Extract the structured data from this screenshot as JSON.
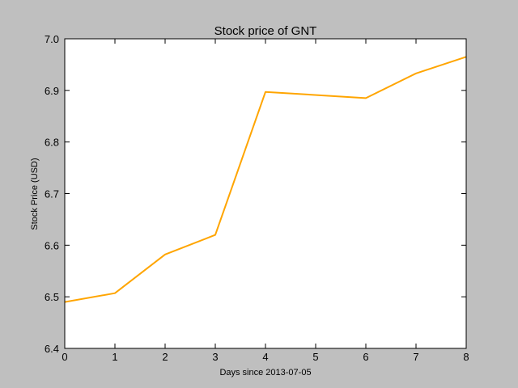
{
  "chart_data": {
    "type": "line",
    "title": "Stock price of GNT",
    "xlabel": "Days since 2013-07-05",
    "ylabel": "Stock Price (USD)",
    "x": [
      0,
      1,
      2,
      3,
      4,
      6,
      7,
      8
    ],
    "series": [
      {
        "values": [
          6.49,
          6.507,
          6.582,
          6.62,
          6.897,
          6.885,
          6.933,
          6.965
        ],
        "color": "#ffa500"
      }
    ],
    "xlim": [
      0,
      8
    ],
    "ylim": [
      6.4,
      7.0
    ],
    "xticks": [
      "0",
      "1",
      "2",
      "3",
      "4",
      "5",
      "6",
      "7",
      "8"
    ],
    "yticks": [
      "6.4",
      "6.5",
      "6.6",
      "6.7",
      "6.8",
      "6.9",
      "7.0"
    ],
    "grid": false,
    "legend": "none"
  },
  "colors": {
    "figure_background": "#bfbfbf",
    "plot_background": "#ffffff",
    "line": "#ffa500"
  }
}
